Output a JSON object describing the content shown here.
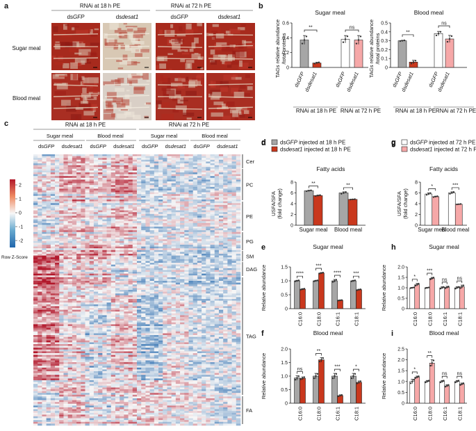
{
  "colors": {
    "grey": "#a6a6a6",
    "red": "#c9381d",
    "pink": "#f6a8a8",
    "white": "#ffffff",
    "hm_red": "#b2182b",
    "hm_white": "#f7f7f7",
    "hm_blue": "#2166ac"
  },
  "panel_a": {
    "letter": "a",
    "group_headers": [
      "RNAi at 18 h PE",
      "RNAi at 72 h PE"
    ],
    "col_headers": [
      {
        "pre": "ds",
        "ital": "GFP"
      },
      {
        "pre": "ds",
        "ital": "desat1"
      },
      {
        "pre": "ds",
        "ital": "GFP"
      },
      {
        "pre": "ds",
        "ital": "desat1"
      }
    ],
    "row_labels": [
      "Sugar meal",
      "Blood meal"
    ]
  },
  "panel_b": {
    "letter": "b",
    "ylabel_line1": "TAGs relative abundance",
    "ylabel_line2": "/total proteins",
    "group_labels": [
      "RNAi at 18 h PE",
      "RNAi at 72 h PE"
    ],
    "bar_labels": [
      {
        "pre": "ds",
        "ital": "GFP"
      },
      {
        "pre": "ds",
        "ital": "desat1"
      },
      {
        "pre": "ds",
        "ital": "GFP"
      },
      {
        "pre": "ds",
        "ital": "desat1"
      }
    ]
  },
  "panel_c": {
    "letter": "c",
    "group_headers": [
      "RNAi at 18 h PE",
      "RNAi at 72 h PE"
    ],
    "meal_headers": [
      "Sugar meal",
      "Blood meal",
      "Sugar meal",
      "Blood meal"
    ],
    "col_headers": [
      {
        "pre": "ds",
        "ital": "GFP"
      },
      {
        "pre": "ds",
        "ital": "desat1"
      },
      {
        "pre": "ds",
        "ital": "GFP"
      },
      {
        "pre": "ds",
        "ital": "desat1"
      },
      {
        "pre": "ds",
        "ital": "GFP"
      },
      {
        "pre": "ds",
        "ital": "desat1"
      },
      {
        "pre": "ds",
        "ital": "GFP"
      },
      {
        "pre": "ds",
        "ital": "desat1"
      }
    ],
    "colorbar_ticks": [
      "2",
      "1",
      "0",
      "-1",
      "-2"
    ],
    "colorbar_label": "Row Z-Score",
    "lipid_classes": [
      "Cer",
      "PC",
      "PE",
      "PG",
      "SM",
      "DAG",
      "TAG",
      "FA"
    ]
  },
  "legend_d": {
    "items": [
      {
        "pre": "ds",
        "ital": "GFP",
        "post": " injected at 18 h PE",
        "color": "#a6a6a6"
      },
      {
        "pre": "ds",
        "ital": "desat1",
        "post": " injected at 18 h PE",
        "color": "#c9381d"
      }
    ]
  },
  "legend_g": {
    "items": [
      {
        "pre": "ds",
        "ital": "GFP",
        "post": " injected at 72 h PE",
        "color": "#ffffff"
      },
      {
        "pre": "ds",
        "ital": "desat1",
        "post": " injected at 72 h PE",
        "color": "#f6a8a8"
      }
    ]
  },
  "ratio_panel": {
    "ylabel_line1": "USFA/SFA",
    "ylabel_line2": "(fold change)",
    "categories": [
      "Sugar meal",
      "Blood meal"
    ]
  },
  "fa_panel": {
    "ylabel": "Relative abundance",
    "categories": [
      "C16:0",
      "C18:0",
      "C16:1",
      "C18:1"
    ]
  },
  "chart_data": [
    {
      "id": "b-sugar",
      "letter": "",
      "type": "bar",
      "title": "Sugar meal",
      "categories": [
        "dsGFP (18 h)",
        "dsdesat1 (18 h)",
        "dsGFP (72 h)",
        "dsdesat1 (72 h)"
      ],
      "values": [
        0.37,
        0.06,
        0.38,
        0.37
      ],
      "errors": [
        0.06,
        0.01,
        0.05,
        0.06
      ],
      "colors": [
        "#a6a6a6",
        "#c9381d",
        "#ffffff",
        "#f6a8a8"
      ],
      "ylabel": "TAGs relative abundance /total proteins",
      "ylim": [
        0,
        0.6
      ],
      "yticks": [
        0,
        0.2,
        0.4,
        0.6
      ],
      "ytick_labels": [
        "0",
        "0.2",
        "0.4",
        "0.6"
      ],
      "sig": [
        {
          "bars": [
            0,
            1
          ],
          "label": "**"
        },
        {
          "bars": [
            2,
            3
          ],
          "label": "ns"
        }
      ]
    },
    {
      "id": "b-blood",
      "letter": "",
      "type": "bar",
      "title": "Blood meal",
      "categories": [
        "dsGFP (18 h)",
        "dsdesat1 (18 h)",
        "dsGFP (72 h)",
        "dsdesat1 (72 h)"
      ],
      "values": [
        0.3,
        0.06,
        0.38,
        0.32
      ],
      "errors": [
        0.005,
        0.02,
        0.025,
        0.04
      ],
      "colors": [
        "#a6a6a6",
        "#c9381d",
        "#ffffff",
        "#f6a8a8"
      ],
      "ylabel": "TAGs relative abundance /total proteins",
      "ylim": [
        0,
        0.5
      ],
      "yticks": [
        0,
        0.1,
        0.2,
        0.3,
        0.4,
        0.5
      ],
      "ytick_labels": [
        "0",
        "0.1",
        "0.2",
        "0.3",
        "0.4",
        "0.5"
      ],
      "sig": [
        {
          "bars": [
            0,
            1
          ],
          "label": "**"
        },
        {
          "bars": [
            2,
            3
          ],
          "label": "ns"
        }
      ]
    },
    {
      "id": "d",
      "letter": "d",
      "type": "bar",
      "title": "Fatty acids",
      "categories": [
        "Sugar meal",
        "Blood meal"
      ],
      "series": [
        {
          "name": "dsGFP injected at 18 h PE",
          "values": [
            6.4,
            6.0
          ],
          "errors": [
            0.1,
            0.2
          ]
        },
        {
          "name": "dsdesat1 injected at 18 h PE",
          "values": [
            5.5,
            4.8
          ],
          "errors": [
            0.1,
            0.05
          ]
        }
      ],
      "colors": [
        "#a6a6a6",
        "#c9381d"
      ],
      "ylabel": "USFA/SFA (fold change)",
      "ylim": [
        0,
        8
      ],
      "yticks": [
        0,
        2,
        4,
        6,
        8
      ],
      "ytick_labels": [
        "0",
        "2",
        "4",
        "6",
        "8"
      ],
      "sig": [
        "**",
        "**"
      ]
    },
    {
      "id": "g",
      "letter": "g",
      "type": "bar",
      "title": "Fatty acids",
      "categories": [
        "Sugar meal",
        "Blood meal"
      ],
      "series": [
        {
          "name": "dsGFP injected at 72 h PE",
          "values": [
            5.8,
            6.0
          ],
          "errors": [
            0.2,
            0.2
          ]
        },
        {
          "name": "dsdesat1 injected at 72 h PE",
          "values": [
            5.3,
            3.9
          ],
          "errors": [
            0.1,
            0.05
          ]
        }
      ],
      "colors": [
        "#ffffff",
        "#f6a8a8"
      ],
      "ylabel": "USFA/SFA (fold change)",
      "ylim": [
        0,
        8
      ],
      "yticks": [
        0,
        2,
        4,
        6,
        8
      ],
      "ytick_labels": [
        "0",
        "2",
        "4",
        "6",
        "8"
      ],
      "sig": [
        "*",
        "***"
      ]
    },
    {
      "id": "e",
      "letter": "e",
      "type": "bar",
      "title": "Sugar meal",
      "categories": [
        "C16:0",
        "C18:0",
        "C16:1",
        "C18:1"
      ],
      "series": [
        {
          "name": "dsGFP injected at 18 h PE",
          "values": [
            1.0,
            1.0,
            1.0,
            1.0
          ],
          "errors": [
            0.02,
            0.02,
            0.05,
            0.02
          ]
        },
        {
          "name": "dsdesat1 injected at 18 h PE",
          "values": [
            0.7,
            1.28,
            0.3,
            0.68
          ],
          "errors": [
            0.02,
            0.02,
            0.01,
            0.02
          ]
        }
      ],
      "colors": [
        "#a6a6a6",
        "#c9381d"
      ],
      "ylabel": "Relative abundance",
      "ylim": [
        0,
        1.5
      ],
      "yticks": [
        0,
        0.5,
        1.0,
        1.5
      ],
      "ytick_labels": [
        "0",
        "0.5",
        "1.0",
        "1.5"
      ],
      "sig": [
        "****",
        "***",
        "****",
        "***"
      ]
    },
    {
      "id": "f",
      "letter": "f",
      "type": "bar",
      "title": "Blood meal",
      "categories": [
        "C16:0",
        "C18:0",
        "C16:1",
        "C18:1"
      ],
      "series": [
        {
          "name": "dsGFP injected at 18 h PE",
          "values": [
            0.93,
            1.0,
            1.0,
            1.0
          ],
          "errors": [
            0.08,
            0.1,
            0.1,
            0.1
          ]
        },
        {
          "name": "dsdesat1 injected at 18 h PE",
          "values": [
            0.92,
            1.6,
            0.28,
            0.77
          ],
          "errors": [
            0.05,
            0.08,
            0.03,
            0.05
          ]
        }
      ],
      "colors": [
        "#a6a6a6",
        "#c9381d"
      ],
      "ylabel": "Relative abundance",
      "ylim": [
        0,
        2.0
      ],
      "yticks": [
        0,
        0.5,
        1.0,
        1.5,
        2.0
      ],
      "ytick_labels": [
        "0",
        "0.5",
        "1.0",
        "1.5",
        "2.0"
      ],
      "sig": [
        "ns",
        "**",
        "***",
        "*"
      ]
    },
    {
      "id": "h",
      "letter": "h",
      "type": "bar",
      "title": "Sugar meal",
      "categories": [
        "C16:0",
        "C18:0",
        "C16:1",
        "C18:1"
      ],
      "series": [
        {
          "name": "dsGFP injected at 72 h PE",
          "values": [
            1.0,
            1.0,
            1.0,
            1.0
          ],
          "errors": [
            0.02,
            0.02,
            0.05,
            0.05
          ]
        },
        {
          "name": "dsdesat1 injected at 72 h PE",
          "values": [
            1.15,
            1.45,
            1.02,
            1.05
          ],
          "errors": [
            0.06,
            0.05,
            0.05,
            0.08
          ]
        }
      ],
      "colors": [
        "#ffffff",
        "#f6a8a8"
      ],
      "ylabel": "Relative abundance",
      "ylim": [
        0,
        2.0
      ],
      "yticks": [
        0,
        0.5,
        1.0,
        1.5,
        2.0
      ],
      "ytick_labels": [
        "0",
        "0.5",
        "1.0",
        "1.5",
        "2.0"
      ],
      "sig": [
        "*",
        "***",
        "ns",
        "ns"
      ]
    },
    {
      "id": "i",
      "letter": "i",
      "type": "bar",
      "title": "Blood meal",
      "categories": [
        "C16:0",
        "C18:0",
        "C16:1",
        "C18:1"
      ],
      "series": [
        {
          "name": "dsGFP injected at 72 h PE",
          "values": [
            1.0,
            1.0,
            1.0,
            1.0
          ],
          "errors": [
            0.1,
            0.05,
            0.05,
            0.05
          ]
        },
        {
          "name": "dsdesat1 injected at 72 h PE",
          "values": [
            1.2,
            1.85,
            0.8,
            0.88
          ],
          "errors": [
            0.05,
            0.15,
            0.05,
            0.05
          ]
        }
      ],
      "colors": [
        "#ffffff",
        "#f6a8a8"
      ],
      "ylabel": "Relative abundance",
      "ylim": [
        0,
        2.5
      ],
      "yticks": [
        0,
        0.5,
        1.0,
        1.5,
        2.0,
        2.5
      ],
      "ytick_labels": [
        "0",
        "0.5",
        "1.0",
        "1.5",
        "2.0",
        "2.5"
      ],
      "sig": [
        "*",
        "**",
        "ns",
        "ns"
      ]
    }
  ]
}
